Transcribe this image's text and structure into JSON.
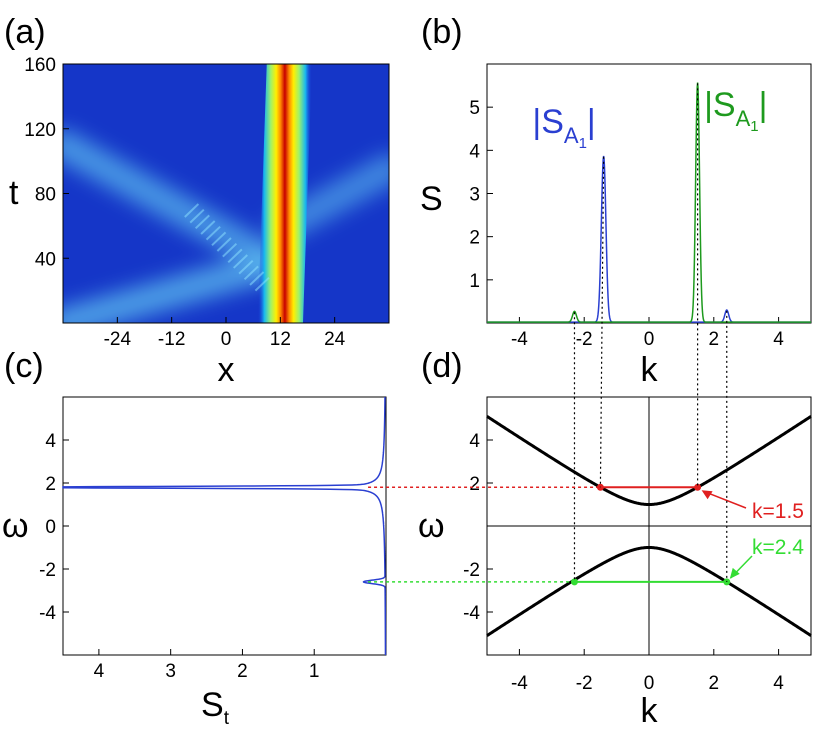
{
  "chart_data": [
    {
      "panel": "(a)",
      "type": "heatmap",
      "xlabel": "x",
      "ylabel": "t",
      "xlim": [
        -36,
        36
      ],
      "ylim": [
        0,
        160
      ],
      "xticks": [
        -24,
        -12,
        0,
        12,
        24
      ],
      "yticks": [
        40,
        80,
        120,
        160
      ],
      "colormap": "jet",
      "features": [
        {
          "kind": "soliton",
          "x_start": 11,
          "x_end": 13,
          "t_start": 0,
          "t_end": 160,
          "intensity": 1.0
        },
        {
          "kind": "ray",
          "x0": 9,
          "t0": 40,
          "x1": -36,
          "t1": 110,
          "intensity": 0.4
        },
        {
          "kind": "ray",
          "x0": 13,
          "t0": 60,
          "x1": 36,
          "t1": 95,
          "intensity": 0.3
        },
        {
          "kind": "ray",
          "x0": -36,
          "t0": 0,
          "x1": 9,
          "t1": 35,
          "intensity": 0.45
        }
      ]
    },
    {
      "panel": "(b)",
      "type": "line",
      "xlabel": "k",
      "ylabel": "S",
      "xlim": [
        -5,
        5
      ],
      "ylim": [
        0,
        6
      ],
      "xticks": [
        -4,
        -2,
        0,
        2,
        4
      ],
      "yticks": [
        1,
        2,
        3,
        4,
        5
      ],
      "series": [
        {
          "color": "#2a3fd1",
          "peaks": [
            [
              -1.4,
              3.85,
              0.07
            ],
            [
              2.4,
              0.28,
              0.06
            ]
          ]
        },
        {
          "color": "#1e9a1e",
          "peaks": [
            [
              1.5,
              5.55,
              0.06
            ],
            [
              -2.3,
              0.25,
              0.06
            ]
          ]
        }
      ],
      "annotations": [
        {
          "text": "|S",
          "sub": "A",
          "subsub": "1",
          "tail": "|",
          "color": "#2a3fd1",
          "k": -3.6,
          "s": 4.4
        },
        {
          "text": "|S",
          "sub": "A",
          "subsub": "1",
          "tail": "|",
          "color": "#1e9a1e",
          "k": 1.7,
          "s": 4.8
        }
      ],
      "dotted_k": [
        -2.3,
        -1.4,
        1.5,
        2.4
      ]
    },
    {
      "panel": "(c)",
      "type": "line",
      "xlabel": "S",
      "xlabel_sub": "t",
      "ylabel": "ω",
      "xlim": [
        4.5,
        0
      ],
      "ylim": [
        -6,
        6
      ],
      "xticks": [
        4,
        3,
        2,
        1
      ],
      "yticks": [
        -4,
        -2,
        0,
        2,
        4
      ],
      "series": [
        {
          "color": "#2a3fd1",
          "peaks": [
            [
              1.8,
              4.4,
              0.04
            ],
            [
              -2.6,
              0.3,
              0.08
            ]
          ]
        }
      ],
      "hlines": [
        {
          "y": 1.8,
          "color": "#e02020"
        },
        {
          "y": -2.6,
          "color": "#33dd33"
        }
      ]
    },
    {
      "panel": "(d)",
      "type": "line",
      "xlabel": "k",
      "ylabel": "ω",
      "xlim": [
        -5,
        5
      ],
      "ylim": [
        -6,
        6
      ],
      "xticks": [
        -4,
        -2,
        0,
        2,
        4
      ],
      "yticks": [
        -4,
        -2,
        2,
        4
      ],
      "series": [
        {
          "name": "upper band",
          "formula": "sqrt(1+k^2)",
          "color": "#000000"
        },
        {
          "name": "lower band",
          "formula": "-sqrt(1+k^2)",
          "color": "#000000"
        }
      ],
      "markers": [
        {
          "k": [
            -1.5,
            1.5
          ],
          "omega": 1.8,
          "color": "#e02020"
        },
        {
          "k": [
            -2.3,
            2.4
          ],
          "omega": -2.6,
          "color": "#33dd33"
        }
      ],
      "annotations": [
        {
          "text": "k=1.5",
          "color": "#e02020"
        },
        {
          "text": "k=2.4",
          "color": "#33dd33"
        }
      ]
    }
  ]
}
